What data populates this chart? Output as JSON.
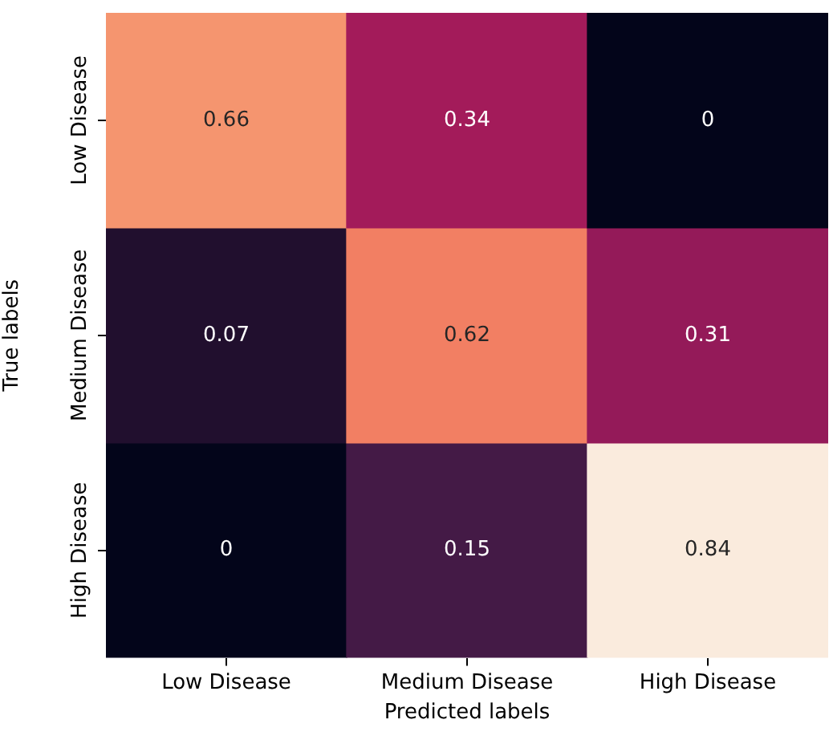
{
  "chart_data": {
    "type": "heatmap",
    "xlabel": "Predicted labels",
    "ylabel": "True labels",
    "categories": [
      "Low Disease",
      "Medium Disease",
      "High Disease"
    ],
    "y_categories": [
      "Low Disease",
      "Medium Disease",
      "High Disease"
    ],
    "cells": [
      [
        0.66,
        0.34,
        0
      ],
      [
        0.07,
        0.62,
        0.31
      ],
      [
        0,
        0.15,
        0.84
      ]
    ],
    "data_labels": true
  }
}
